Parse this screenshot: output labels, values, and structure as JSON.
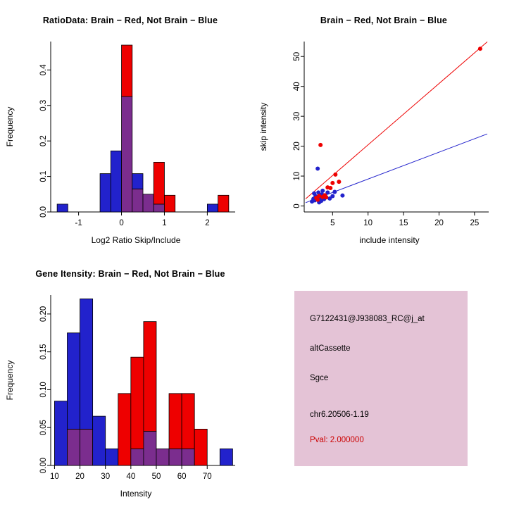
{
  "colors": {
    "red": "#ee0000",
    "blue": "#2222cc",
    "overlap": "#7b2d8e",
    "axis": "#000000"
  },
  "charts": [
    {
      "type": "histogram",
      "title": "RatioData: Brain − Red, Not Brain − Blue",
      "xlabel": "Log2 Ratio Skip/Include",
      "ylabel": "Frequency",
      "legend": {
        "red": "Brain",
        "blue": "Not Brain"
      },
      "xlim": [
        -1.65,
        2.65
      ],
      "ylim": [
        0,
        0.48
      ],
      "xticks": [
        -1,
        0,
        1,
        2
      ],
      "xtick_labels": [
        "-1",
        "0",
        "1",
        "2"
      ],
      "yticks": [
        0,
        0.1,
        0.2,
        0.3,
        0.4
      ],
      "ytick_labels": [
        "0.0",
        "0.1",
        "0.2",
        "0.3",
        "0.4"
      ],
      "bins": [
        [
          -1.5,
          -1.25,
          0.022,
          0
        ],
        [
          -0.5,
          -0.25,
          0.108,
          0
        ],
        [
          -0.25,
          0,
          0.172,
          0
        ],
        [
          0,
          0.25,
          0.325,
          0.47
        ],
        [
          0.25,
          0.5,
          0.108,
          0.065
        ],
        [
          0.5,
          0.75,
          0.05,
          0.05
        ],
        [
          0.75,
          1,
          0.022,
          0.14
        ],
        [
          1,
          1.25,
          0,
          0.047
        ],
        [
          2,
          2.25,
          0.022,
          0
        ],
        [
          2.25,
          2.5,
          0,
          0.047
        ]
      ]
    },
    {
      "type": "scatter",
      "title": "Brain − Red, Not Brain − Blue",
      "xlabel": "include intensity",
      "ylabel": "skip intensity",
      "legend": {
        "red": "Brain",
        "blue": "Not Brain"
      },
      "xlim": [
        1,
        27
      ],
      "ylim": [
        -2,
        55
      ],
      "xticks": [
        5,
        10,
        15,
        20,
        25
      ],
      "xtick_labels": [
        "5",
        "10",
        "15",
        "20",
        "25"
      ],
      "yticks": [
        0,
        10,
        20,
        30,
        40,
        50
      ],
      "ytick_labels": [
        "0",
        "10",
        "20",
        "30",
        "40",
        "50"
      ],
      "lines": [
        {
          "color": "red",
          "x1": 1.2,
          "y1": 2.4,
          "x2": 26.8,
          "y2": 54.9
        },
        {
          "color": "blue",
          "x1": 1.2,
          "y1": 1.1,
          "x2": 26.8,
          "y2": 24.1
        }
      ],
      "points_red": [
        [
          25.8,
          52.6
        ],
        [
          3.3,
          20.4
        ],
        [
          5.4,
          10.5
        ],
        [
          5.9,
          8.1
        ],
        [
          5.0,
          7.7
        ],
        [
          4.3,
          6.2
        ],
        [
          4.7,
          6.0
        ],
        [
          2.7,
          2.7
        ],
        [
          3.1,
          3.4
        ],
        [
          3.6,
          3.0
        ],
        [
          2.9,
          2.1
        ],
        [
          3.9,
          3.6
        ],
        [
          4.1,
          2.9
        ]
      ],
      "points_blue": [
        [
          2.9,
          12.5
        ],
        [
          2.1,
          1.5
        ],
        [
          2.3,
          2.4
        ],
        [
          2.5,
          1.9
        ],
        [
          2.6,
          3.3
        ],
        [
          2.8,
          2.2
        ],
        [
          3.0,
          4.5
        ],
        [
          3.2,
          2.7
        ],
        [
          3.4,
          1.7
        ],
        [
          3.5,
          3.9
        ],
        [
          3.8,
          2.3
        ],
        [
          4.0,
          3.2
        ],
        [
          4.3,
          4.5
        ],
        [
          4.6,
          2.5
        ],
        [
          5.0,
          3.3
        ],
        [
          5.3,
          4.7
        ],
        [
          6.4,
          3.5
        ],
        [
          2.4,
          4.2
        ],
        [
          3.1,
          1.2
        ],
        [
          3.6,
          5.1
        ]
      ]
    },
    {
      "type": "histogram",
      "title": "Gene Itensity: Brain − Red, Not Brain − Blue",
      "xlabel": "Intensity",
      "ylabel": "Frequency",
      "legend": {
        "red": "Brain",
        "blue": "Not Brain"
      },
      "xlim": [
        8.5,
        81
      ],
      "ylim": [
        0,
        0.225
      ],
      "xticks": [
        10,
        20,
        30,
        40,
        50,
        60,
        70
      ],
      "xtick_labels": [
        "10",
        "20",
        "30",
        "40",
        "50",
        "60",
        "70"
      ],
      "yticks": [
        0,
        0.05,
        0.1,
        0.15,
        0.2
      ],
      "ytick_labels": [
        "0.00",
        "0.05",
        "0.10",
        "0.15",
        "0.20"
      ],
      "bins": [
        [
          10,
          15,
          0.085,
          0
        ],
        [
          15,
          20,
          0.175,
          0.048
        ],
        [
          20,
          25,
          0.22,
          0.048
        ],
        [
          25,
          30,
          0.065,
          0
        ],
        [
          30,
          35,
          0.022,
          0
        ],
        [
          35,
          40,
          0,
          0.095
        ],
        [
          40,
          45,
          0.022,
          0.143
        ],
        [
          45,
          50,
          0.045,
          0.19
        ],
        [
          50,
          55,
          0.022,
          0.022
        ],
        [
          55,
          60,
          0.022,
          0.095
        ],
        [
          60,
          65,
          0.022,
          0.095
        ],
        [
          65,
          70,
          0,
          0.048
        ],
        [
          75,
          80,
          0.022,
          0
        ]
      ]
    }
  ],
  "info_panel": {
    "bg": "#e4c3d6",
    "lines": [
      "G7122431@J938083_RC@j_at",
      "altCassette",
      "Sgce",
      "chr6.20506-1.19"
    ],
    "pval": "Pval: 2.000000",
    "pval_color": "#cc0000"
  }
}
